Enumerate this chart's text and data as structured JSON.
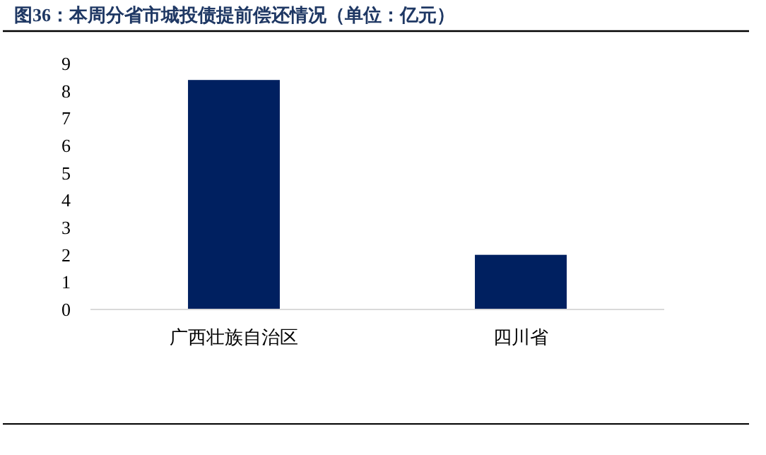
{
  "chart_data": {
    "type": "bar",
    "title": "图36：本周分省市城投债提前偿还情况（单位：亿元）",
    "categories": [
      "广西壮族自治区",
      "四川省"
    ],
    "values": [
      8.4,
      2.0
    ],
    "color": "#002060",
    "ylim": [
      0,
      9
    ],
    "yticks": [
      0,
      1,
      2,
      3,
      4,
      5,
      6,
      7,
      8,
      9
    ],
    "grid": false
  }
}
